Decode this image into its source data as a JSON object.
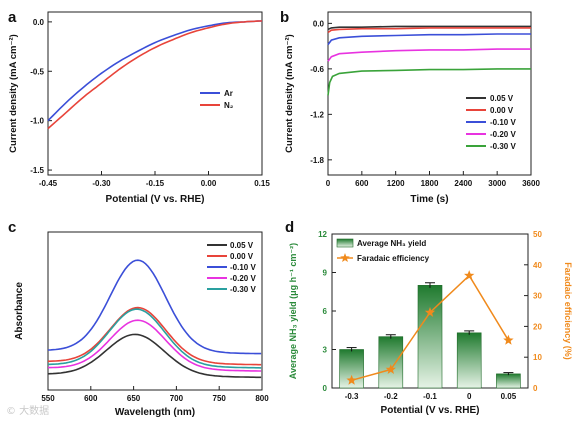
{
  "watermark": "© 大数据",
  "chart_data": [
    {
      "panel_label": "a",
      "type": "line",
      "xlabel": "Potential (V vs. RHE)",
      "ylabel": "Current density (mA cm⁻²)",
      "xlim": [
        -0.45,
        0.15
      ],
      "ylim": [
        -1.55,
        0.1
      ],
      "xticks": [
        -0.45,
        -0.3,
        -0.15,
        0.0,
        0.15
      ],
      "xtick_labels": [
        "-0.45",
        "-0.30",
        "-0.15",
        "0.00",
        "0.15"
      ],
      "yticks": [
        0.0,
        -0.5,
        -1.0,
        -1.5
      ],
      "ytick_labels": [
        "0.0",
        "-0.5",
        "-1.0",
        "-1.5"
      ],
      "legend": "right",
      "series": [
        {
          "name": "Ar",
          "color": "#3b4fd8",
          "x": [
            -0.45,
            -0.4,
            -0.35,
            -0.3,
            -0.25,
            -0.2,
            -0.15,
            -0.1,
            -0.05,
            0.0,
            0.05,
            0.1,
            0.15
          ],
          "y": [
            -1.0,
            -0.82,
            -0.66,
            -0.52,
            -0.4,
            -0.3,
            -0.21,
            -0.14,
            -0.08,
            -0.04,
            -0.01,
            0.0,
            0.01
          ]
        },
        {
          "name": "N₂",
          "color": "#e8443a",
          "x": [
            -0.45,
            -0.4,
            -0.35,
            -0.3,
            -0.25,
            -0.2,
            -0.15,
            -0.1,
            -0.05,
            0.0,
            0.05,
            0.1,
            0.15
          ],
          "y": [
            -1.08,
            -0.92,
            -0.76,
            -0.62,
            -0.48,
            -0.36,
            -0.26,
            -0.18,
            -0.11,
            -0.06,
            -0.02,
            0.0,
            0.01
          ]
        }
      ]
    },
    {
      "panel_label": "b",
      "type": "line",
      "xlabel": "Time (s)",
      "ylabel": "Current density (mA cm⁻²)",
      "xlim": [
        0,
        3600
      ],
      "ylim": [
        -2.0,
        0.15
      ],
      "xticks": [
        0,
        600,
        1200,
        1800,
        2400,
        3000,
        3600
      ],
      "xtick_labels": [
        "0",
        "600",
        "1200",
        "1800",
        "2400",
        "3000",
        "3600"
      ],
      "yticks": [
        0.0,
        -0.6,
        -1.2,
        -1.8
      ],
      "ytick_labels": [
        "0.0",
        "-0.6",
        "-1.2",
        "-1.8"
      ],
      "legend": "bottom-right",
      "series": [
        {
          "name": "0.05 V",
          "color": "#333333",
          "x": [
            0,
            60,
            200,
            600,
            1200,
            1800,
            2400,
            3000,
            3600
          ],
          "y": [
            -0.08,
            -0.06,
            -0.05,
            -0.05,
            -0.04,
            -0.04,
            -0.04,
            -0.04,
            -0.04
          ]
        },
        {
          "name": "0.00 V",
          "color": "#e8443a",
          "x": [
            0,
            60,
            200,
            600,
            1200,
            1800,
            2400,
            3000,
            3600
          ],
          "y": [
            -0.12,
            -0.09,
            -0.08,
            -0.07,
            -0.07,
            -0.06,
            -0.06,
            -0.06,
            -0.06
          ]
        },
        {
          "name": "-0.10 V",
          "color": "#3b4fd8",
          "x": [
            0,
            60,
            200,
            600,
            1200,
            1800,
            2400,
            3000,
            3600
          ],
          "y": [
            -0.28,
            -0.22,
            -0.19,
            -0.17,
            -0.16,
            -0.15,
            -0.15,
            -0.14,
            -0.14
          ]
        },
        {
          "name": "-0.20 V",
          "color": "#e833e0",
          "x": [
            0,
            60,
            200,
            600,
            1200,
            1800,
            2400,
            3000,
            3600
          ],
          "y": [
            -0.5,
            -0.44,
            -0.4,
            -0.38,
            -0.36,
            -0.35,
            -0.35,
            -0.34,
            -0.34
          ]
        },
        {
          "name": "-0.30 V",
          "color": "#3aa33a",
          "x": [
            0,
            30,
            80,
            200,
            600,
            1200,
            1800,
            2400,
            3000,
            3600
          ],
          "y": [
            -0.95,
            -0.78,
            -0.7,
            -0.66,
            -0.63,
            -0.62,
            -0.61,
            -0.61,
            -0.6,
            -0.6
          ]
        }
      ]
    },
    {
      "panel_label": "c",
      "type": "line",
      "xlabel": "Wavelength (nm)",
      "ylabel": "Absorbance",
      "xlim": [
        550,
        800
      ],
      "xticks": [
        550,
        600,
        650,
        700,
        750,
        800
      ],
      "xtick_labels": [
        "550",
        "600",
        "650",
        "700",
        "750",
        "800"
      ],
      "ylim": [
        0,
        1.0
      ],
      "legend": "top-right",
      "series": [
        {
          "name": "0.05 V",
          "color": "#333333",
          "baseline": 0.1,
          "peak": 0.36,
          "center": 652,
          "width": 52
        },
        {
          "name": "0.00 V",
          "color": "#e8443a",
          "baseline": 0.18,
          "peak": 0.53,
          "center": 655,
          "width": 50
        },
        {
          "name": "-0.10 V",
          "color": "#3b4fd8",
          "baseline": 0.25,
          "peak": 0.83,
          "center": 655,
          "width": 50
        },
        {
          "name": "-0.20 V",
          "color": "#e833e0",
          "baseline": 0.14,
          "peak": 0.45,
          "center": 655,
          "width": 50
        },
        {
          "name": "-0.30 V",
          "color": "#2aa0a0",
          "baseline": 0.16,
          "peak": 0.52,
          "center": 654,
          "width": 50
        }
      ]
    },
    {
      "panel_label": "d",
      "type": "bar",
      "categories": [
        "-0.3",
        "-0.2",
        "-0.1",
        "0",
        "0.05"
      ],
      "xlabel": "Potential (V vs. RHE)",
      "ylabel": "Average NH₃ yield (μg h⁻¹ cm⁻²)",
      "ylabel_right": "Faradaic efficiency (%)",
      "ylim": [
        0,
        12
      ],
      "yticks": [
        0,
        3,
        6,
        9,
        12
      ],
      "ylim_right": [
        0,
        50
      ],
      "yticks_right": [
        0,
        10,
        20,
        30,
        40,
        50
      ],
      "legend": "top-left",
      "series": [
        {
          "name": "Average NH₃ yield",
          "color": "#2a8a3a",
          "axis": "left",
          "values": [
            3.0,
            4.0,
            8.0,
            4.3,
            1.1
          ],
          "errors": [
            0.15,
            0.15,
            0.2,
            0.15,
            0.1
          ]
        },
        {
          "name": "Faradaic efficiency",
          "color": "#f08a1c",
          "axis": "right",
          "values": [
            2.5,
            6.0,
            24.5,
            36.5,
            15.5
          ]
        }
      ]
    }
  ]
}
